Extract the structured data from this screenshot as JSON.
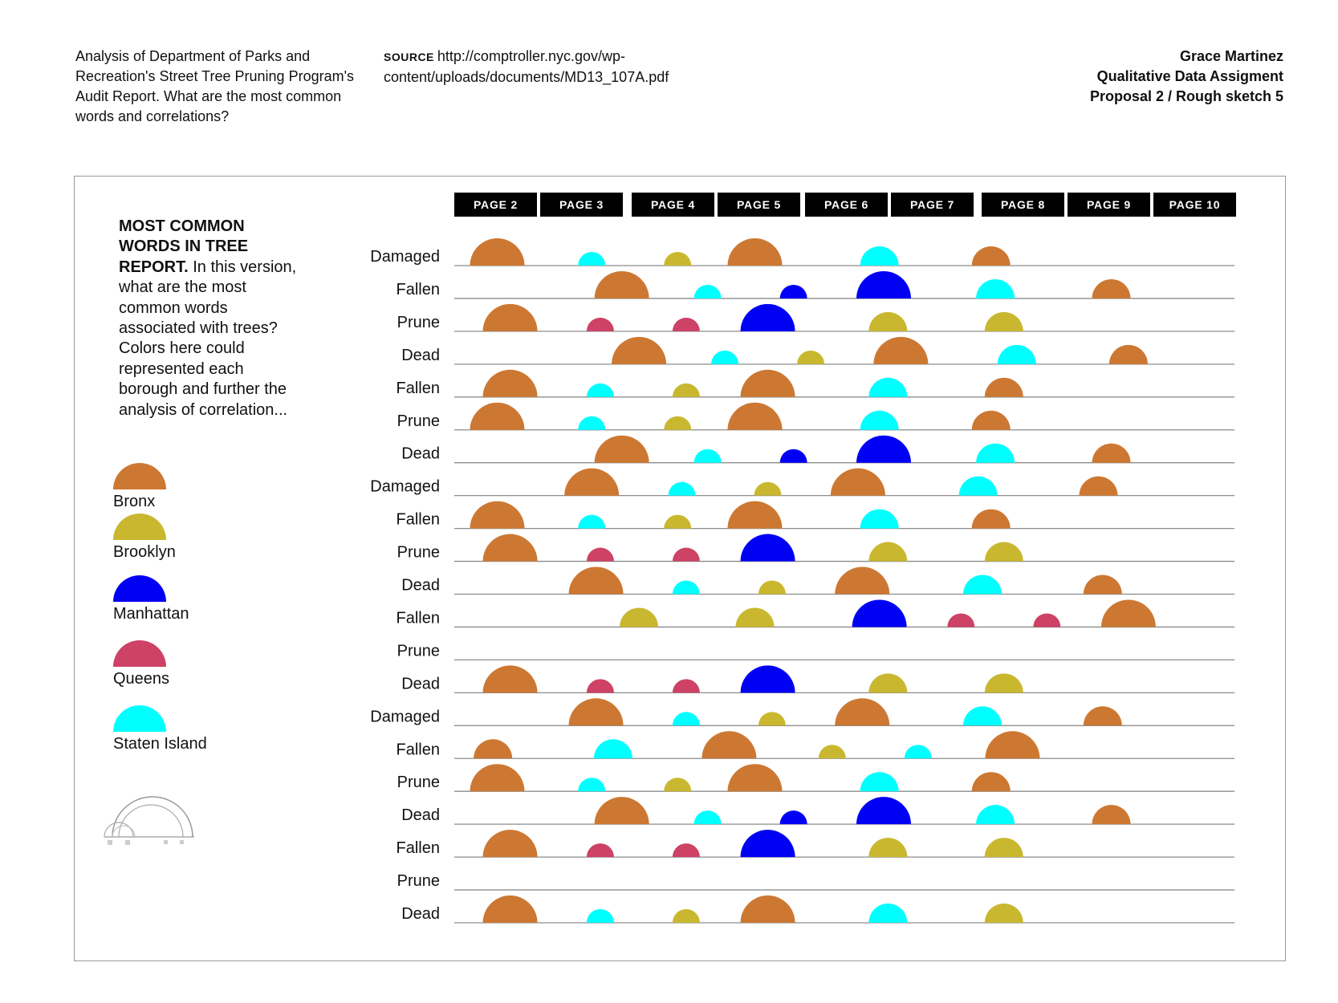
{
  "header": {
    "description": "Analysis of Department of Parks and Recreation's Street Tree Pruning Program's Audit Report. What are the most common words and correlations?",
    "source_label": "SOURCE",
    "source_url": "http://comptroller.nyc.gov/wp-content/uploads/documents/MD13_107A.pdf",
    "author": "Grace Martinez",
    "assignment": "Qualitative Data Assigment",
    "proposal": "Proposal 2 / Rough sketch 5"
  },
  "intro": {
    "bold": "MOST COMMON WORDS IN TREE REPORT.",
    "text": " In this version, what are the most common words associated with trees? Colors here could represented each borough and further the analysis of correlation..."
  },
  "legend": [
    {
      "label": "Bronx",
      "color": "#cd7832"
    },
    {
      "label": "Brooklyn",
      "color": "#c9b82f"
    },
    {
      "label": "Manhattan",
      "color": "#0000f5"
    },
    {
      "label": "Queens",
      "color": "#cd4265"
    },
    {
      "label": "Staten Island",
      "color": "#00ffff"
    }
  ],
  "chart_data": {
    "type": "semicircle-matrix",
    "title": "MOST COMMON WORDS IN TREE REPORT.",
    "pages": [
      "PAGE 2",
      "PAGE 3",
      "PAGE 4",
      "PAGE 5",
      "PAGE 6",
      "PAGE 7",
      "PAGE 8",
      "PAGE 9",
      "PAGE 10"
    ],
    "series": [
      {
        "name": "Bronx",
        "color": "#cd7832"
      },
      {
        "name": "Brooklyn",
        "color": "#c9b82f"
      },
      {
        "name": "Manhattan",
        "color": "#0000f5"
      },
      {
        "name": "Queens",
        "color": "#cd4265"
      },
      {
        "name": "Staten Island",
        "color": "#00ffff"
      }
    ],
    "size_scale": "relative dome size 1–5",
    "rows": [
      {
        "word": "Damaged",
        "marks": [
          {
            "page": 0.5,
            "borough": "Bronx",
            "size": 5
          },
          {
            "page": 1.6,
            "borough": "Staten Island",
            "size": 2
          },
          {
            "page": 2.6,
            "borough": "Brooklyn",
            "size": 2
          },
          {
            "page": 3.5,
            "borough": "Bronx",
            "size": 5
          },
          {
            "page": 4.95,
            "borough": "Staten Island",
            "size": 3
          },
          {
            "page": 6.25,
            "borough": "Bronx",
            "size": 3
          }
        ]
      },
      {
        "word": "Fallen",
        "marks": [
          {
            "page": 1.95,
            "borough": "Bronx",
            "size": 5
          },
          {
            "page": 2.95,
            "borough": "Staten Island",
            "size": 2
          },
          {
            "page": 3.95,
            "borough": "Manhattan",
            "size": 2
          },
          {
            "page": 5.0,
            "borough": "Manhattan",
            "size": 5
          },
          {
            "page": 6.3,
            "borough": "Staten Island",
            "size": 3
          },
          {
            "page": 7.65,
            "borough": "Bronx",
            "size": 3
          }
        ]
      },
      {
        "word": "Prune",
        "marks": [
          {
            "page": 0.65,
            "borough": "Bronx",
            "size": 5
          },
          {
            "page": 1.7,
            "borough": "Queens",
            "size": 2
          },
          {
            "page": 2.7,
            "borough": "Queens",
            "size": 2
          },
          {
            "page": 3.65,
            "borough": "Manhattan",
            "size": 5
          },
          {
            "page": 5.05,
            "borough": "Brooklyn",
            "size": 3
          },
          {
            "page": 6.4,
            "borough": "Brooklyn",
            "size": 3
          }
        ]
      },
      {
        "word": "Dead",
        "marks": [
          {
            "page": 2.15,
            "borough": "Bronx",
            "size": 5
          },
          {
            "page": 3.15,
            "borough": "Staten Island",
            "size": 2
          },
          {
            "page": 4.15,
            "borough": "Brooklyn",
            "size": 2
          },
          {
            "page": 5.2,
            "borough": "Bronx",
            "size": 5
          },
          {
            "page": 6.55,
            "borough": "Staten Island",
            "size": 3
          },
          {
            "page": 7.85,
            "borough": "Bronx",
            "size": 3
          }
        ]
      },
      {
        "word": "Fallen",
        "marks": [
          {
            "page": 0.65,
            "borough": "Bronx",
            "size": 5
          },
          {
            "page": 1.7,
            "borough": "Staten Island",
            "size": 2
          },
          {
            "page": 2.7,
            "borough": "Brooklyn",
            "size": 2
          },
          {
            "page": 3.65,
            "borough": "Bronx",
            "size": 5
          },
          {
            "page": 5.05,
            "borough": "Staten Island",
            "size": 3
          },
          {
            "page": 6.4,
            "borough": "Bronx",
            "size": 3
          }
        ]
      },
      {
        "word": "Prune",
        "marks": [
          {
            "page": 0.5,
            "borough": "Bronx",
            "size": 5
          },
          {
            "page": 1.6,
            "borough": "Staten Island",
            "size": 2
          },
          {
            "page": 2.6,
            "borough": "Brooklyn",
            "size": 2
          },
          {
            "page": 3.5,
            "borough": "Bronx",
            "size": 5
          },
          {
            "page": 4.95,
            "borough": "Staten Island",
            "size": 3
          },
          {
            "page": 6.25,
            "borough": "Bronx",
            "size": 3
          }
        ]
      },
      {
        "word": "Dead",
        "marks": [
          {
            "page": 1.95,
            "borough": "Bronx",
            "size": 5
          },
          {
            "page": 2.95,
            "borough": "Staten Island",
            "size": 2
          },
          {
            "page": 3.95,
            "borough": "Manhattan",
            "size": 2
          },
          {
            "page": 5.0,
            "borough": "Manhattan",
            "size": 5
          },
          {
            "page": 6.3,
            "borough": "Staten Island",
            "size": 3
          },
          {
            "page": 7.65,
            "borough": "Bronx",
            "size": 3
          }
        ]
      },
      {
        "word": "Damaged",
        "marks": [
          {
            "page": 1.6,
            "borough": "Bronx",
            "size": 5
          },
          {
            "page": 2.65,
            "borough": "Staten Island",
            "size": 2
          },
          {
            "page": 3.65,
            "borough": "Brooklyn",
            "size": 2
          },
          {
            "page": 4.7,
            "borough": "Bronx",
            "size": 5
          },
          {
            "page": 6.1,
            "borough": "Staten Island",
            "size": 3
          },
          {
            "page": 7.5,
            "borough": "Bronx",
            "size": 3
          }
        ]
      },
      {
        "word": "Fallen",
        "marks": [
          {
            "page": 0.5,
            "borough": "Bronx",
            "size": 5
          },
          {
            "page": 1.6,
            "borough": "Staten Island",
            "size": 2
          },
          {
            "page": 2.6,
            "borough": "Brooklyn",
            "size": 2
          },
          {
            "page": 3.5,
            "borough": "Bronx",
            "size": 5
          },
          {
            "page": 4.95,
            "borough": "Staten Island",
            "size": 3
          },
          {
            "page": 6.25,
            "borough": "Bronx",
            "size": 3
          }
        ]
      },
      {
        "word": "Prune",
        "marks": [
          {
            "page": 0.65,
            "borough": "Bronx",
            "size": 5
          },
          {
            "page": 1.7,
            "borough": "Queens",
            "size": 2
          },
          {
            "page": 2.7,
            "borough": "Queens",
            "size": 2
          },
          {
            "page": 3.65,
            "borough": "Manhattan",
            "size": 5
          },
          {
            "page": 5.05,
            "borough": "Brooklyn",
            "size": 3
          },
          {
            "page": 6.4,
            "borough": "Brooklyn",
            "size": 3
          }
        ]
      },
      {
        "word": "Dead",
        "marks": [
          {
            "page": 1.65,
            "borough": "Bronx",
            "size": 5
          },
          {
            "page": 2.7,
            "borough": "Staten Island",
            "size": 2
          },
          {
            "page": 3.7,
            "borough": "Brooklyn",
            "size": 2
          },
          {
            "page": 4.75,
            "borough": "Bronx",
            "size": 5
          },
          {
            "page": 6.15,
            "borough": "Staten Island",
            "size": 3
          },
          {
            "page": 7.55,
            "borough": "Bronx",
            "size": 3
          }
        ]
      },
      {
        "word": "Fallen",
        "marks": [
          {
            "page": 2.15,
            "borough": "Brooklyn",
            "size": 3
          },
          {
            "page": 3.5,
            "borough": "Brooklyn",
            "size": 3
          },
          {
            "page": 4.95,
            "borough": "Manhattan",
            "size": 5
          },
          {
            "page": 5.9,
            "borough": "Queens",
            "size": 2
          },
          {
            "page": 6.9,
            "borough": "Queens",
            "size": 2
          },
          {
            "page": 7.85,
            "borough": "Bronx",
            "size": 5
          }
        ]
      },
      {
        "word": "Prune",
        "marks": []
      },
      {
        "word": "Dead",
        "marks": [
          {
            "page": 0.65,
            "borough": "Bronx",
            "size": 5
          },
          {
            "page": 1.7,
            "borough": "Queens",
            "size": 2
          },
          {
            "page": 2.7,
            "borough": "Queens",
            "size": 2
          },
          {
            "page": 3.65,
            "borough": "Manhattan",
            "size": 5
          },
          {
            "page": 5.05,
            "borough": "Brooklyn",
            "size": 3
          },
          {
            "page": 6.4,
            "borough": "Brooklyn",
            "size": 3
          }
        ]
      },
      {
        "word": "Damaged",
        "marks": [
          {
            "page": 1.65,
            "borough": "Bronx",
            "size": 5
          },
          {
            "page": 2.7,
            "borough": "Staten Island",
            "size": 2
          },
          {
            "page": 3.7,
            "borough": "Brooklyn",
            "size": 2
          },
          {
            "page": 4.75,
            "borough": "Bronx",
            "size": 5
          },
          {
            "page": 6.15,
            "borough": "Staten Island",
            "size": 3
          },
          {
            "page": 7.55,
            "borough": "Bronx",
            "size": 3
          }
        ]
      },
      {
        "word": "Fallen",
        "marks": [
          {
            "page": 0.45,
            "borough": "Bronx",
            "size": 3
          },
          {
            "page": 1.85,
            "borough": "Staten Island",
            "size": 3
          },
          {
            "page": 3.2,
            "borough": "Bronx",
            "size": 5
          },
          {
            "page": 4.4,
            "borough": "Brooklyn",
            "size": 2
          },
          {
            "page": 5.4,
            "borough": "Staten Island",
            "size": 2
          },
          {
            "page": 6.5,
            "borough": "Bronx",
            "size": 5
          }
        ]
      },
      {
        "word": "Prune",
        "marks": [
          {
            "page": 0.5,
            "borough": "Bronx",
            "size": 5
          },
          {
            "page": 1.6,
            "borough": "Staten Island",
            "size": 2
          },
          {
            "page": 2.6,
            "borough": "Brooklyn",
            "size": 2
          },
          {
            "page": 3.5,
            "borough": "Bronx",
            "size": 5
          },
          {
            "page": 4.95,
            "borough": "Staten Island",
            "size": 3
          },
          {
            "page": 6.25,
            "borough": "Bronx",
            "size": 3
          }
        ]
      },
      {
        "word": "Dead",
        "marks": [
          {
            "page": 1.95,
            "borough": "Bronx",
            "size": 5
          },
          {
            "page": 2.95,
            "borough": "Staten Island",
            "size": 2
          },
          {
            "page": 3.95,
            "borough": "Manhattan",
            "size": 2
          },
          {
            "page": 5.0,
            "borough": "Manhattan",
            "size": 5
          },
          {
            "page": 6.3,
            "borough": "Staten Island",
            "size": 3
          },
          {
            "page": 7.65,
            "borough": "Bronx",
            "size": 3
          }
        ]
      },
      {
        "word": "Fallen",
        "marks": [
          {
            "page": 0.65,
            "borough": "Bronx",
            "size": 5
          },
          {
            "page": 1.7,
            "borough": "Queens",
            "size": 2
          },
          {
            "page": 2.7,
            "borough": "Queens",
            "size": 2
          },
          {
            "page": 3.65,
            "borough": "Manhattan",
            "size": 5
          },
          {
            "page": 5.05,
            "borough": "Brooklyn",
            "size": 3
          },
          {
            "page": 6.4,
            "borough": "Brooklyn",
            "size": 3
          }
        ]
      },
      {
        "word": "Prune",
        "marks": []
      },
      {
        "word": "Dead",
        "marks": [
          {
            "page": 0.65,
            "borough": "Bronx",
            "size": 5
          },
          {
            "page": 1.7,
            "borough": "Staten Island",
            "size": 2
          },
          {
            "page": 2.7,
            "borough": "Brooklyn",
            "size": 2
          },
          {
            "page": 3.65,
            "borough": "Bronx",
            "size": 5
          },
          {
            "page": 5.05,
            "borough": "Staten Island",
            "size": 3
          },
          {
            "page": 6.4,
            "borough": "Brooklyn",
            "size": 3
          }
        ]
      }
    ]
  }
}
